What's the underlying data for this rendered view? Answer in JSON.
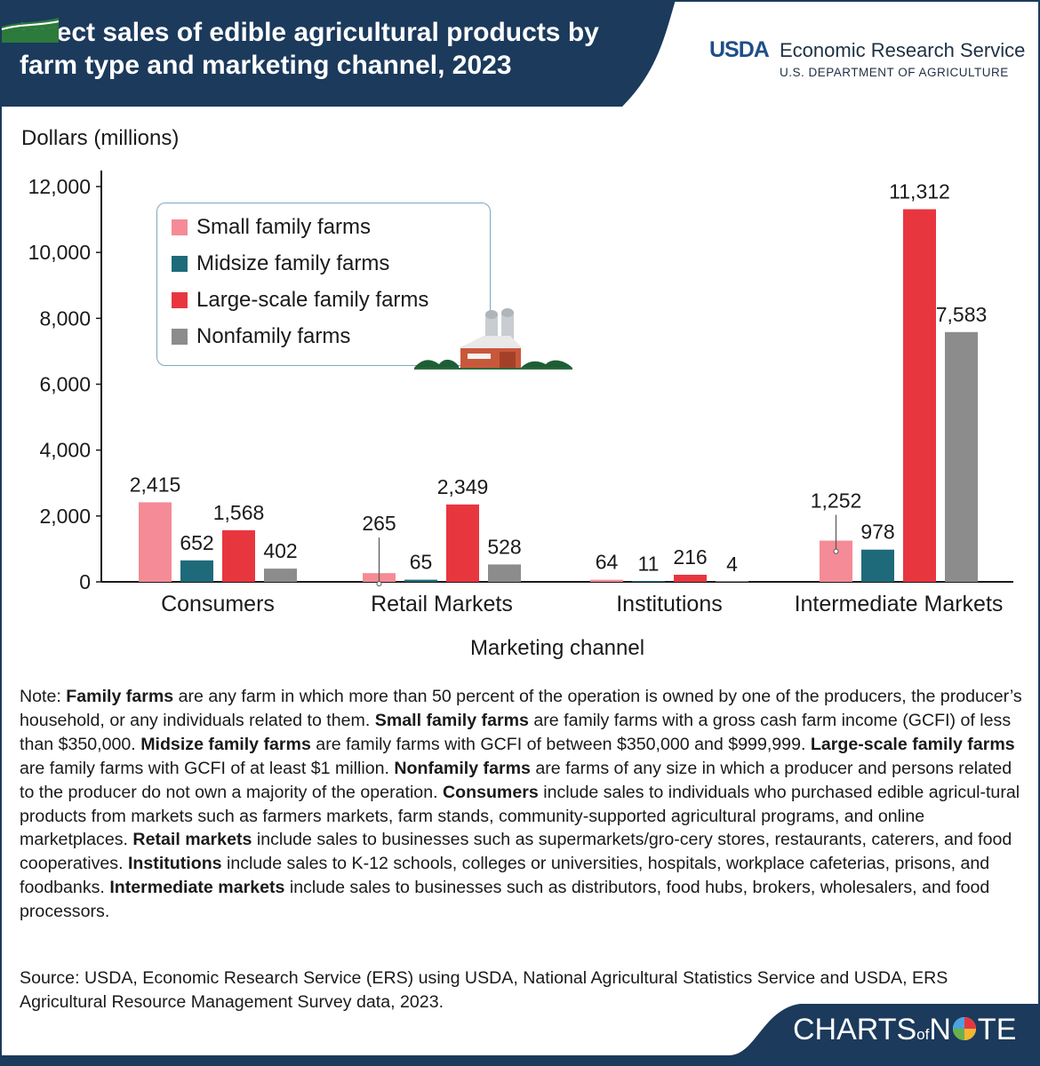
{
  "header": {
    "title": "Direct sales of edible agricultural products by farm type and marketing channel, 2023",
    "agency_logo": "USDA",
    "agency_name": "Economic Research Service",
    "department": "U.S. DEPARTMENT OF AGRICULTURE"
  },
  "colors": {
    "header_bg": "#1b3a5c",
    "small": "#f48b96",
    "midsize": "#1e6a7a",
    "large": "#e8363f",
    "nonfamily": "#8c8c8c"
  },
  "chart_data": {
    "type": "bar",
    "title": "Direct sales of edible agricultural products by farm type and marketing channel, 2023",
    "ylabel": "Dollars (millions)",
    "xlabel": "Marketing channel",
    "ylim": [
      0,
      12000
    ],
    "yticks": [
      "0",
      "2,000",
      "4,000",
      "6,000",
      "8,000",
      "10,000",
      "12,000"
    ],
    "ytick_values": [
      0,
      2000,
      4000,
      6000,
      8000,
      10000,
      12000
    ],
    "grid": false,
    "legend_position": "top-left",
    "categories": [
      "Consumers",
      "Retail Markets",
      "Institutions",
      "Intermediate Markets"
    ],
    "series": [
      {
        "name": "Small family farms",
        "values": [
          2415,
          265,
          64,
          1252
        ],
        "labels": [
          "2,415",
          "265",
          "64",
          "1,252"
        ]
      },
      {
        "name": "Midsize family farms",
        "values": [
          652,
          65,
          11,
          978
        ],
        "labels": [
          "652",
          "65",
          "11",
          "978"
        ]
      },
      {
        "name": "Large-scale family farms",
        "values": [
          1568,
          2349,
          216,
          11312
        ],
        "labels": [
          "1,568",
          "2,349",
          "216",
          "11,312"
        ]
      },
      {
        "name": "Nonfamily farms",
        "values": [
          402,
          528,
          4,
          7583
        ],
        "labels": [
          "402",
          "528",
          "4",
          "7,583"
        ]
      }
    ]
  },
  "note": {
    "prefix": "Note: ",
    "parts": [
      {
        "bold": "Family farms",
        "text": " are any farm in which more than 50 percent of the operation is owned by one of the producers, the producer’s household, or any individuals related to them. "
      },
      {
        "bold": "Small family farms",
        "text": " are family farms with a gross cash farm income (GCFI) of less than $350,000. "
      },
      {
        "bold": "Midsize family farms",
        "text": " are family farms with GCFI of between $350,000 and $999,999. "
      },
      {
        "bold": "Large-scale family farms",
        "text": " are family farms with GCFI of at least $1 million. "
      },
      {
        "bold": "Nonfamily farms",
        "text": " are farms of any size in which a producer and persons related to the producer do not own a majority of the operation. "
      },
      {
        "bold": "Consumers",
        "text": " include sales to individuals who purchased edible agricul-tural products from markets such as farmers markets, farm stands, community-supported agricultural programs, and online marketplaces. "
      },
      {
        "bold": "Retail markets",
        "text": " include sales to businesses such as supermarkets/gro-cery stores, restaurants, caterers, and food cooperatives. "
      },
      {
        "bold": "Institutions",
        "text": " include sales to K-12 schools, colleges or universities, hospitals, workplace cafeterias, prisons, and foodbanks. "
      },
      {
        "bold": "Intermediate markets",
        "text": " include sales to businesses such as distributors, food hubs, brokers, wholesalers, and food processors."
      }
    ]
  },
  "source": "Source: USDA, Economic Research Service (ERS) using USDA, National Agricultural Statistics Service and USDA, ERS Agricultural Resource Management Survey data, 2023.",
  "footer": {
    "brand_a": "CHARTS",
    "brand_of": "of",
    "brand_b": "N",
    "brand_c": "TE"
  }
}
